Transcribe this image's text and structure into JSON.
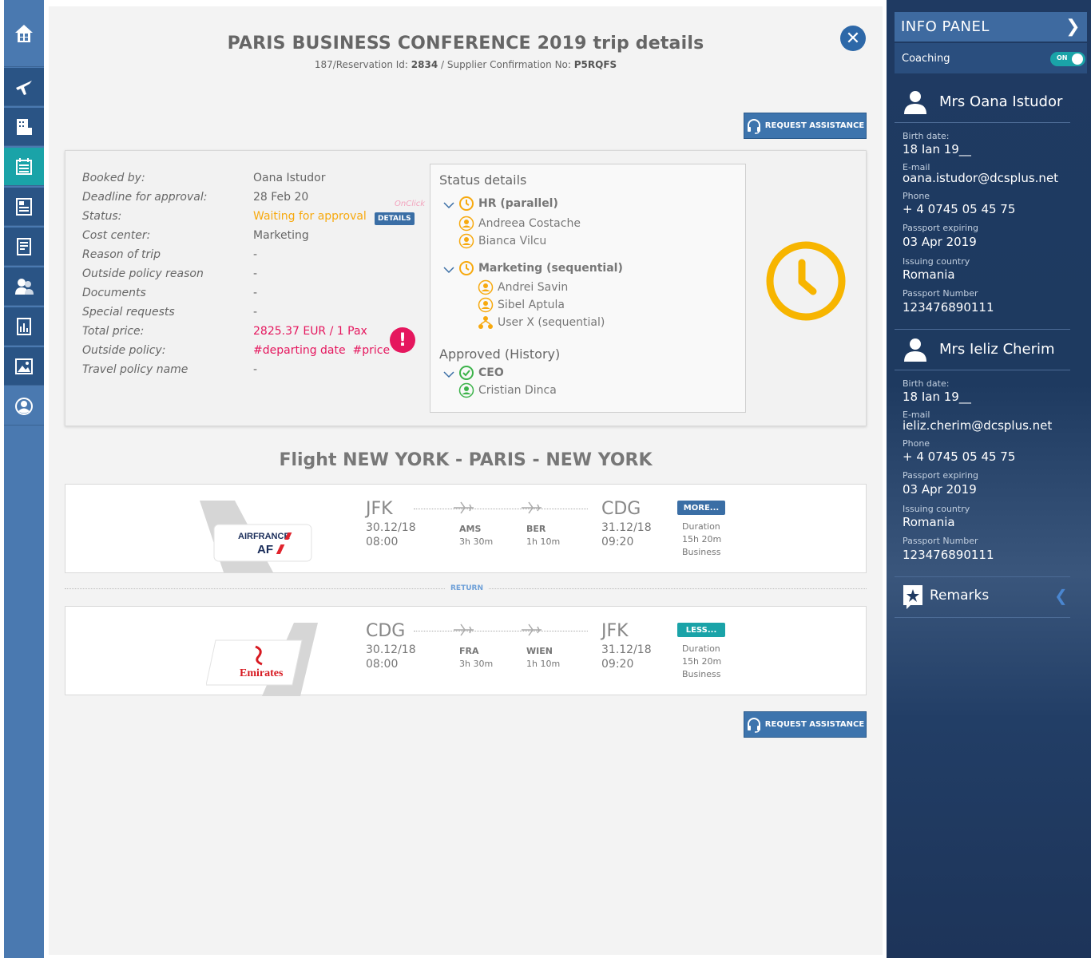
{
  "header": {
    "title": "PARIS BUSINESS CONFERENCE 2019 trip details",
    "subtitle_prefix": "187/Reservation Id: ",
    "reservation_id": "2834",
    "subtitle_mid": " / Supplier Confirmation No: ",
    "supplier_no": "P5RQFS",
    "request_assistance": "REQUEST ASSISTANCE"
  },
  "nav": {
    "items": [
      "home-icon",
      "flight-icon",
      "hotel-icon",
      "calendar-icon",
      "document-icon",
      "report-icon",
      "users-icon",
      "chart-icon",
      "gallery-icon",
      "profile-icon"
    ],
    "active": "calendar-icon"
  },
  "booking": {
    "labels": [
      "Booked by:",
      "Deadline for approval:",
      "Status:",
      "Cost center:",
      "Reason of trip",
      "Outside policy reason",
      "Documents",
      "Special requests",
      "Total price:",
      "Outside policy:",
      "Travel policy name"
    ],
    "booked_by": "Oana Istudor",
    "deadline": "28 Feb 20",
    "status": "Waiting for approval",
    "details_badge": "DETAILS",
    "onclick": "OnClick",
    "cost_center": "Marketing",
    "dash": "-",
    "total_price": "2825.37 EUR / 1 Pax",
    "outside_policy": "#departing date  #price",
    "alert": "!"
  },
  "status_details": {
    "title": "Status details",
    "group1": "HR (parallel)",
    "group1_members": [
      "Andreea Costache",
      "Bianca Vilcu"
    ],
    "group2": "Marketing (sequential)",
    "group2_members": [
      "Andrei Savin",
      "Sibel Aptula",
      "User X (sequential)"
    ],
    "history_title": "Approved (History)",
    "history_group": "CEO",
    "history_members": [
      "Cristian Dinca"
    ]
  },
  "flight": {
    "title": "Flight NEW YORK - PARIS - NEW YORK",
    "return_label": "RETURN",
    "duration_label": "Duration",
    "outbound": {
      "airline": "AIRFRANCE",
      "airline_code": "AF",
      "from": "JFK",
      "from_date": "30.12/18",
      "from_time": "08:00",
      "stops": [
        {
          "code": "AMS",
          "dur": "3h 30m"
        },
        {
          "code": "BER",
          "dur": "1h 10m"
        }
      ],
      "to": "CDG",
      "to_date": "31.12/18",
      "to_time": "09:20",
      "badge": "MORE...",
      "badge_color": "#3a6ea5",
      "duration": "15h 20m",
      "class": "Business"
    },
    "inbound": {
      "airline": "Emirates",
      "from": "CDG",
      "from_date": "30.12/18",
      "from_time": "08:00",
      "stops": [
        {
          "code": "FRA",
          "dur": "3h 30m"
        },
        {
          "code": "WIEN",
          "dur": "1h 10m"
        }
      ],
      "to": "JFK",
      "to_date": "31.12/18",
      "to_time": "09:20",
      "badge": "LESS...",
      "badge_color": "#1aa3a8",
      "duration": "15h 20m",
      "class": "Business"
    }
  },
  "info_panel": {
    "title": "INFO PANEL",
    "coaching": "Coaching",
    "toggle": "ON",
    "labels": {
      "birth": "Birth date:",
      "email": "E-mail",
      "phone": "Phone",
      "passport_exp": "Passport expiring",
      "country": "Issuing country",
      "passport_no": "Passport Number"
    },
    "passengers": [
      {
        "name": "Mrs Oana Istudor",
        "birth": "18 Ian 19__",
        "email": "oana.istudor@dcsplus.net",
        "phone": "+ 4 0745 05 45 75",
        "passport_exp": "03 Apr 2019",
        "country": "Romania",
        "passport_no": "123476890111"
      },
      {
        "name": "Mrs Ieliz Cherim",
        "birth": "18 Ian 19__",
        "email": "ieliz.cherim@dcsplus.net",
        "phone": "+ 4 0745 05 45 75",
        "passport_exp": "03 Apr 2019",
        "country": "Romania",
        "passport_no": "123476890111"
      }
    ],
    "remarks": "Remarks"
  }
}
